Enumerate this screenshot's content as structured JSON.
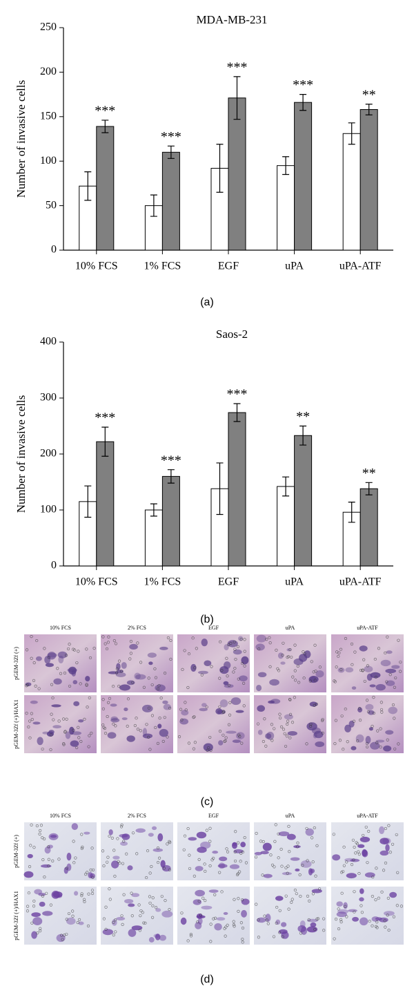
{
  "chart_data": [
    {
      "type": "bar",
      "title": "MDA-MB-231",
      "y_label": "Number of invasive cells",
      "caption": "(a)",
      "categories": [
        "10% FCS",
        "1% FCS",
        "EGF",
        "uPA",
        "uPA-ATF"
      ],
      "series": [
        {
          "color": "#ffffff",
          "values": [
            72,
            50,
            92,
            95,
            131
          ],
          "errors": [
            16,
            12,
            27,
            10,
            12
          ]
        },
        {
          "color": "#808080",
          "values": [
            139,
            110,
            171,
            166,
            158
          ],
          "errors": [
            7,
            7,
            24,
            9,
            6
          ]
        }
      ],
      "annotations": [
        "***",
        "***",
        "***",
        "***",
        "**"
      ],
      "ylim": [
        0,
        250
      ],
      "yticks": [
        0,
        50,
        100,
        150,
        200,
        250
      ],
      "grid": false
    },
    {
      "type": "bar",
      "title": "Saos-2",
      "y_label": "Number of invasive cells",
      "caption": "(b)",
      "categories": [
        "10% FCS",
        "1% FCS",
        "EGF",
        "uPA",
        "uPA-ATF"
      ],
      "series": [
        {
          "color": "#ffffff",
          "values": [
            115,
            100,
            138,
            142,
            96
          ],
          "errors": [
            28,
            11,
            46,
            17,
            18
          ]
        },
        {
          "color": "#808080",
          "values": [
            222,
            160,
            274,
            233,
            138
          ],
          "errors": [
            26,
            12,
            16,
            17,
            11
          ]
        }
      ],
      "annotations": [
        "***",
        "***",
        "***",
        "**",
        "**"
      ],
      "ylim": [
        0,
        400
      ],
      "yticks": [
        0,
        100,
        200,
        300,
        400
      ],
      "grid": false
    }
  ],
  "panels": [
    {
      "caption": "(c)",
      "columns": [
        "10% FCS",
        "2% FCS",
        "EGF",
        "uPA",
        "uPA-ATF"
      ],
      "rows": [
        "pGEM-3Zf (+)",
        "pGEM-3Zf (+)/HAX1"
      ]
    },
    {
      "caption": "(d)",
      "columns": [
        "10% FCS",
        "2% FCS",
        "EGF",
        "uPA",
        "uPA-ATF"
      ],
      "rows": [
        "pGEM-3Zf (+)",
        "pGEM-3Zf (+)/HAX1"
      ]
    }
  ]
}
